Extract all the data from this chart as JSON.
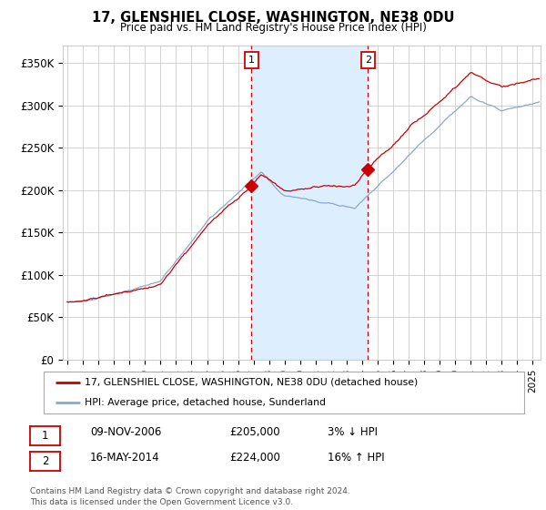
{
  "title": "17, GLENSHIEL CLOSE, WASHINGTON, NE38 0DU",
  "subtitle": "Price paid vs. HM Land Registry's House Price Index (HPI)",
  "legend_line1": "17, GLENSHIEL CLOSE, WASHINGTON, NE38 0DU (detached house)",
  "legend_line2": "HPI: Average price, detached house, Sunderland",
  "annotation1": {
    "label": "1",
    "date": "09-NOV-2006",
    "price": "£205,000",
    "pct": "3% ↓ HPI",
    "x_year": 2006.86,
    "y_val": 205000
  },
  "annotation2": {
    "label": "2",
    "date": "16-MAY-2014",
    "price": "£224,000",
    "pct": "16% ↑ HPI",
    "x_year": 2014.37,
    "y_val": 224000
  },
  "shade_start": 2006.86,
  "shade_end": 2014.37,
  "yticks": [
    0,
    50000,
    100000,
    150000,
    200000,
    250000,
    300000,
    350000
  ],
  "ytick_labels": [
    "£0",
    "£50K",
    "£100K",
    "£150K",
    "£200K",
    "£250K",
    "£300K",
    "£350K"
  ],
  "xlim_start": 1994.7,
  "xlim_end": 2025.5,
  "ylim": [
    0,
    370000
  ],
  "color_red": "#cc0000",
  "color_blue": "#88aacc",
  "shade_color": "#ddeeff",
  "grid_color": "#cccccc",
  "bg_color": "#ffffff",
  "footnote": "Contains HM Land Registry data © Crown copyright and database right 2024.\nThis data is licensed under the Open Government Licence v3.0."
}
